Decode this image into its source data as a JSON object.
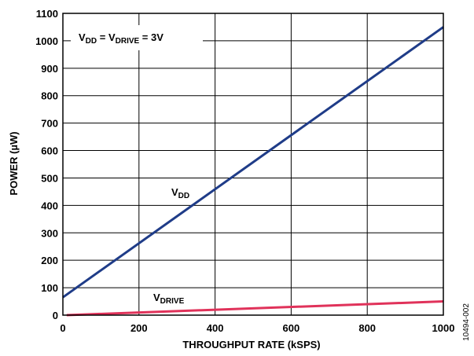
{
  "chart_data": {
    "type": "line",
    "xlabel": "THROUGHPUT RATE (kSPS)",
    "ylabel": "POWER (µW)",
    "xlim": [
      0,
      1000
    ],
    "ylim": [
      0,
      1100
    ],
    "xticks": [
      0,
      200,
      400,
      600,
      800,
      1000
    ],
    "yticks": [
      0,
      100,
      200,
      300,
      400,
      500,
      600,
      700,
      800,
      900,
      1000,
      1100
    ],
    "grid": true,
    "annotation": {
      "v": "V",
      "sub1": "DD",
      "mid": " = V",
      "sub2": "DRIVE",
      "tail": " = 3V"
    },
    "series": [
      {
        "name": "VDD",
        "label_main": "V",
        "label_sub": "DD",
        "color": "#1f3c88",
        "x": [
          0,
          1000
        ],
        "y": [
          65,
          1050
        ]
      },
      {
        "name": "VDRIVE",
        "label_main": "V",
        "label_sub": "DRIVE",
        "color": "#e0325a",
        "x": [
          10,
          1000
        ],
        "y": [
          0,
          50
        ]
      }
    ],
    "figure_id": "10494-002"
  }
}
